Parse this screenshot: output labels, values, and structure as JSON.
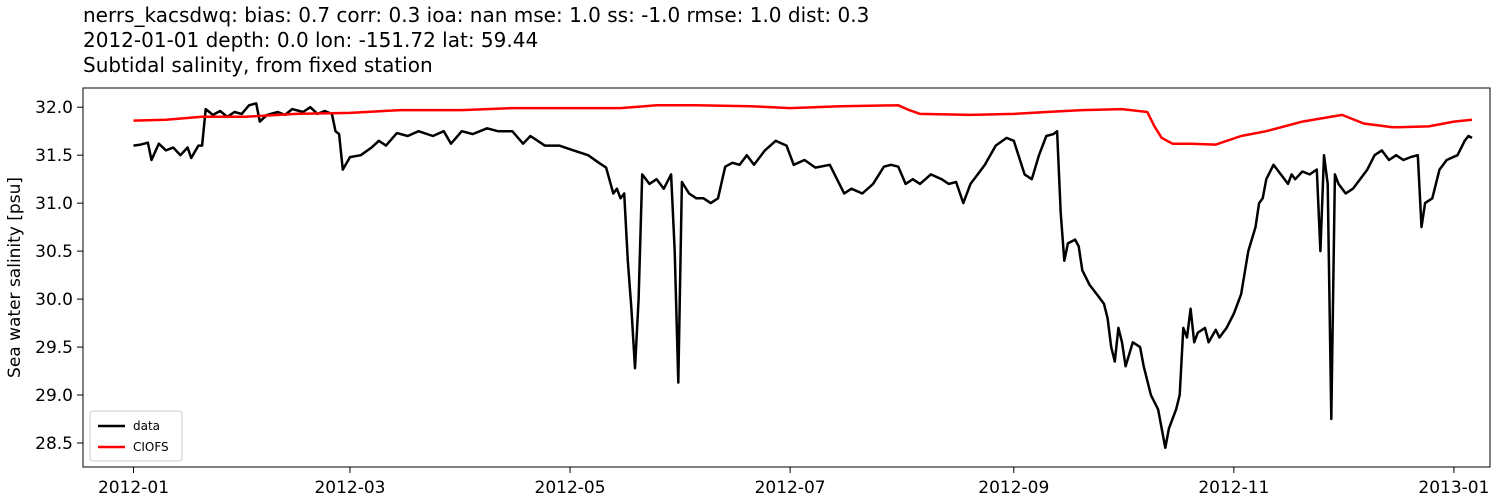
{
  "chart_data": {
    "type": "line",
    "title": [
      "nerrs_kacsdwq: bias: 0.7  corr: 0.3  ioa: nan  mse: 1.0  ss: -1.0  rmse: 1.0  dist: 0.3",
      "2012-01-01 depth: 0.0 lon: -151.72 lat: 59.44",
      "Subtidal salinity, from fixed station"
    ],
    "xlabel": "",
    "ylabel": "Sea water salinity [psu]",
    "x_axis_type": "date",
    "xlim": [
      "2011-12-18",
      "2013-01-11"
    ],
    "ylim": [
      28.25,
      32.2
    ],
    "x_ticks": [
      {
        "date": "2012-01-01",
        "label": "2012-01"
      },
      {
        "date": "2012-03-01",
        "label": "2012-03"
      },
      {
        "date": "2012-05-01",
        "label": "2012-05"
      },
      {
        "date": "2012-07-01",
        "label": "2012-07"
      },
      {
        "date": "2012-09-01",
        "label": "2012-09"
      },
      {
        "date": "2012-11-01",
        "label": "2012-11"
      },
      {
        "date": "2013-01-01",
        "label": "2013-01"
      }
    ],
    "y_ticks": [
      28.5,
      29.0,
      29.5,
      30.0,
      30.5,
      31.0,
      31.5,
      32.0
    ],
    "y_tick_labels": [
      "28.5",
      "29.0",
      "29.5",
      "30.0",
      "30.5",
      "31.0",
      "31.5",
      "32.0"
    ],
    "grid": false,
    "legend_position": "lower-left",
    "series": [
      {
        "name": "data",
        "color": "#000000",
        "points": [
          [
            "2012-01-01",
            31.6
          ],
          [
            "2012-01-03",
            31.61
          ],
          [
            "2012-01-05",
            31.63
          ],
          [
            "2012-01-06",
            31.45
          ],
          [
            "2012-01-08",
            31.62
          ],
          [
            "2012-01-10",
            31.55
          ],
          [
            "2012-01-12",
            31.58
          ],
          [
            "2012-01-14",
            31.5
          ],
          [
            "2012-01-16",
            31.58
          ],
          [
            "2012-01-17",
            31.47
          ],
          [
            "2012-01-19",
            31.6
          ],
          [
            "2012-01-20",
            31.6
          ],
          [
            "2012-01-21",
            31.98
          ],
          [
            "2012-01-23",
            31.92
          ],
          [
            "2012-01-25",
            31.96
          ],
          [
            "2012-01-27",
            31.9
          ],
          [
            "2012-01-29",
            31.95
          ],
          [
            "2012-01-31",
            31.93
          ],
          [
            "2012-02-02",
            32.02
          ],
          [
            "2012-02-04",
            32.04
          ],
          [
            "2012-02-05",
            31.85
          ],
          [
            "2012-02-07",
            31.92
          ],
          [
            "2012-02-10",
            31.95
          ],
          [
            "2012-02-12",
            31.92
          ],
          [
            "2012-02-14",
            31.98
          ],
          [
            "2012-02-17",
            31.95
          ],
          [
            "2012-02-19",
            32.0
          ],
          [
            "2012-02-21",
            31.93
          ],
          [
            "2012-02-23",
            31.96
          ],
          [
            "2012-02-25",
            31.93
          ],
          [
            "2012-02-26",
            31.75
          ],
          [
            "2012-02-27",
            31.72
          ],
          [
            "2012-02-28",
            31.35
          ],
          [
            "2012-03-01",
            31.48
          ],
          [
            "2012-03-04",
            31.5
          ],
          [
            "2012-03-07",
            31.58
          ],
          [
            "2012-03-09",
            31.65
          ],
          [
            "2012-03-11",
            31.6
          ],
          [
            "2012-03-14",
            31.73
          ],
          [
            "2012-03-17",
            31.7
          ],
          [
            "2012-03-20",
            31.75
          ],
          [
            "2012-03-24",
            31.7
          ],
          [
            "2012-03-27",
            31.75
          ],
          [
            "2012-03-29",
            31.62
          ],
          [
            "2012-04-01",
            31.75
          ],
          [
            "2012-04-04",
            31.72
          ],
          [
            "2012-04-08",
            31.78
          ],
          [
            "2012-04-11",
            31.75
          ],
          [
            "2012-04-15",
            31.75
          ],
          [
            "2012-04-18",
            31.62
          ],
          [
            "2012-04-20",
            31.7
          ],
          [
            "2012-04-24",
            31.6
          ],
          [
            "2012-04-28",
            31.6
          ],
          [
            "2012-05-02",
            31.55
          ],
          [
            "2012-05-06",
            31.5
          ],
          [
            "2012-05-09",
            31.42
          ],
          [
            "2012-05-11",
            31.37
          ],
          [
            "2012-05-13",
            31.1
          ],
          [
            "2012-05-14",
            31.15
          ],
          [
            "2012-05-15",
            31.05
          ],
          [
            "2012-05-16",
            31.1
          ],
          [
            "2012-05-17",
            30.4
          ],
          [
            "2012-05-18",
            29.9
          ],
          [
            "2012-05-19",
            29.28
          ],
          [
            "2012-05-20",
            30.0
          ],
          [
            "2012-05-21",
            31.3
          ],
          [
            "2012-05-23",
            31.2
          ],
          [
            "2012-05-25",
            31.25
          ],
          [
            "2012-05-27",
            31.15
          ],
          [
            "2012-05-29",
            31.3
          ],
          [
            "2012-05-30",
            30.5
          ],
          [
            "2012-05-31",
            29.13
          ],
          [
            "2012-06-01",
            31.22
          ],
          [
            "2012-06-03",
            31.1
          ],
          [
            "2012-06-05",
            31.05
          ],
          [
            "2012-06-07",
            31.05
          ],
          [
            "2012-06-09",
            31.0
          ],
          [
            "2012-06-11",
            31.05
          ],
          [
            "2012-06-13",
            31.38
          ],
          [
            "2012-06-15",
            31.42
          ],
          [
            "2012-06-17",
            31.4
          ],
          [
            "2012-06-19",
            31.5
          ],
          [
            "2012-06-21",
            31.4
          ],
          [
            "2012-06-24",
            31.55
          ],
          [
            "2012-06-27",
            31.65
          ],
          [
            "2012-06-30",
            31.6
          ],
          [
            "2012-07-02",
            31.4
          ],
          [
            "2012-07-05",
            31.45
          ],
          [
            "2012-07-08",
            31.37
          ],
          [
            "2012-07-12",
            31.4
          ],
          [
            "2012-07-14",
            31.25
          ],
          [
            "2012-07-16",
            31.1
          ],
          [
            "2012-07-18",
            31.15
          ],
          [
            "2012-07-21",
            31.1
          ],
          [
            "2012-07-24",
            31.2
          ],
          [
            "2012-07-27",
            31.38
          ],
          [
            "2012-07-29",
            31.4
          ],
          [
            "2012-07-31",
            31.38
          ],
          [
            "2012-08-02",
            31.2
          ],
          [
            "2012-08-04",
            31.25
          ],
          [
            "2012-08-06",
            31.2
          ],
          [
            "2012-08-09",
            31.3
          ],
          [
            "2012-08-12",
            31.25
          ],
          [
            "2012-08-14",
            31.2
          ],
          [
            "2012-08-16",
            31.22
          ],
          [
            "2012-08-18",
            31.0
          ],
          [
            "2012-08-20",
            31.2
          ],
          [
            "2012-08-22",
            31.3
          ],
          [
            "2012-08-24",
            31.4
          ],
          [
            "2012-08-27",
            31.6
          ],
          [
            "2012-08-30",
            31.68
          ],
          [
            "2012-09-01",
            31.65
          ],
          [
            "2012-09-04",
            31.3
          ],
          [
            "2012-09-06",
            31.25
          ],
          [
            "2012-09-08",
            31.5
          ],
          [
            "2012-09-10",
            31.7
          ],
          [
            "2012-09-12",
            31.72
          ],
          [
            "2012-09-13",
            31.75
          ],
          [
            "2012-09-14",
            30.9
          ],
          [
            "2012-09-15",
            30.4
          ],
          [
            "2012-09-16",
            30.58
          ],
          [
            "2012-09-18",
            30.62
          ],
          [
            "2012-09-19",
            30.55
          ],
          [
            "2012-09-20",
            30.3
          ],
          [
            "2012-09-22",
            30.15
          ],
          [
            "2012-09-24",
            30.05
          ],
          [
            "2012-09-26",
            29.95
          ],
          [
            "2012-09-27",
            29.8
          ],
          [
            "2012-09-28",
            29.5
          ],
          [
            "2012-09-29",
            29.35
          ],
          [
            "2012-09-30",
            29.7
          ],
          [
            "2012-10-01",
            29.55
          ],
          [
            "2012-10-02",
            29.3
          ],
          [
            "2012-10-04",
            29.55
          ],
          [
            "2012-10-06",
            29.5
          ],
          [
            "2012-10-07",
            29.3
          ],
          [
            "2012-10-09",
            29.0
          ],
          [
            "2012-10-11",
            28.85
          ],
          [
            "2012-10-13",
            28.45
          ],
          [
            "2012-10-14",
            28.65
          ],
          [
            "2012-10-16",
            28.85
          ],
          [
            "2012-10-17",
            29.0
          ],
          [
            "2012-10-18",
            29.7
          ],
          [
            "2012-10-19",
            29.6
          ],
          [
            "2012-10-20",
            29.9
          ],
          [
            "2012-10-21",
            29.55
          ],
          [
            "2012-10-22",
            29.65
          ],
          [
            "2012-10-24",
            29.7
          ],
          [
            "2012-10-25",
            29.55
          ],
          [
            "2012-10-27",
            29.68
          ],
          [
            "2012-10-28",
            29.6
          ],
          [
            "2012-10-30",
            29.7
          ],
          [
            "2012-11-01",
            29.85
          ],
          [
            "2012-11-03",
            30.05
          ],
          [
            "2012-11-05",
            30.5
          ],
          [
            "2012-11-07",
            30.75
          ],
          [
            "2012-11-08",
            31.0
          ],
          [
            "2012-11-09",
            31.05
          ],
          [
            "2012-11-10",
            31.25
          ],
          [
            "2012-11-12",
            31.4
          ],
          [
            "2012-11-14",
            31.3
          ],
          [
            "2012-11-16",
            31.2
          ],
          [
            "2012-11-17",
            31.3
          ],
          [
            "2012-11-18",
            31.25
          ],
          [
            "2012-11-20",
            31.33
          ],
          [
            "2012-11-22",
            31.3
          ],
          [
            "2012-11-24",
            31.35
          ],
          [
            "2012-11-25",
            30.5
          ],
          [
            "2012-11-26",
            31.5
          ],
          [
            "2012-11-27",
            31.2
          ],
          [
            "2012-11-28",
            28.75
          ],
          [
            "2012-11-29",
            31.3
          ],
          [
            "2012-11-30",
            31.2
          ],
          [
            "2012-12-02",
            31.1
          ],
          [
            "2012-12-04",
            31.15
          ],
          [
            "2012-12-06",
            31.25
          ],
          [
            "2012-12-08",
            31.35
          ],
          [
            "2012-12-10",
            31.5
          ],
          [
            "2012-12-12",
            31.55
          ],
          [
            "2012-12-14",
            31.45
          ],
          [
            "2012-12-16",
            31.5
          ],
          [
            "2012-12-18",
            31.45
          ],
          [
            "2012-12-20",
            31.48
          ],
          [
            "2012-12-22",
            31.5
          ],
          [
            "2012-12-23",
            30.75
          ],
          [
            "2012-12-24",
            31.0
          ],
          [
            "2012-12-26",
            31.05
          ],
          [
            "2012-12-28",
            31.35
          ],
          [
            "2012-12-30",
            31.45
          ],
          [
            "2013-01-02",
            31.5
          ],
          [
            "2013-01-04",
            31.65
          ],
          [
            "2013-01-05",
            31.7
          ],
          [
            "2013-01-06",
            31.68
          ]
        ]
      },
      {
        "name": "CIOFS",
        "color": "#ff0000",
        "points": [
          [
            "2012-01-01",
            31.86
          ],
          [
            "2012-01-10",
            31.87
          ],
          [
            "2012-01-20",
            31.9
          ],
          [
            "2012-02-01",
            31.9
          ],
          [
            "2012-02-15",
            31.93
          ],
          [
            "2012-03-01",
            31.94
          ],
          [
            "2012-03-15",
            31.97
          ],
          [
            "2012-04-01",
            31.97
          ],
          [
            "2012-04-15",
            31.99
          ],
          [
            "2012-05-01",
            31.99
          ],
          [
            "2012-05-15",
            31.99
          ],
          [
            "2012-05-25",
            32.02
          ],
          [
            "2012-06-05",
            32.02
          ],
          [
            "2012-06-20",
            32.01
          ],
          [
            "2012-07-01",
            31.99
          ],
          [
            "2012-07-15",
            32.01
          ],
          [
            "2012-07-31",
            32.02
          ],
          [
            "2012-08-03",
            31.97
          ],
          [
            "2012-08-06",
            31.93
          ],
          [
            "2012-08-20",
            31.92
          ],
          [
            "2012-09-01",
            31.93
          ],
          [
            "2012-09-10",
            31.95
          ],
          [
            "2012-09-20",
            31.97
          ],
          [
            "2012-10-01",
            31.98
          ],
          [
            "2012-10-08",
            31.95
          ],
          [
            "2012-10-10",
            31.8
          ],
          [
            "2012-10-12",
            31.68
          ],
          [
            "2012-10-15",
            31.62
          ],
          [
            "2012-10-20",
            31.62
          ],
          [
            "2012-10-27",
            31.61
          ],
          [
            "2012-11-03",
            31.7
          ],
          [
            "2012-11-10",
            31.75
          ],
          [
            "2012-11-20",
            31.85
          ],
          [
            "2012-12-01",
            31.92
          ],
          [
            "2012-12-07",
            31.83
          ],
          [
            "2012-12-15",
            31.79
          ],
          [
            "2012-12-25",
            31.8
          ],
          [
            "2013-01-01",
            31.85
          ],
          [
            "2013-01-06",
            31.87
          ]
        ]
      }
    ]
  }
}
